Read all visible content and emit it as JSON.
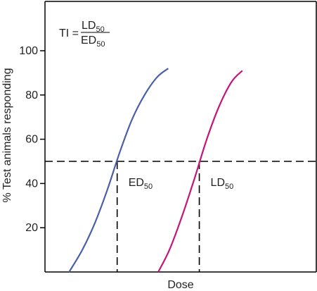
{
  "chart_data": {
    "type": "line",
    "xlabel": "Dose",
    "ylabel": "% Test animals responding",
    "ylim": [
      0,
      110
    ],
    "yticks": [
      20,
      40,
      60,
      80,
      100
    ],
    "x_ticks_shown": false,
    "grid": false,
    "formula": {
      "lhs": "TI =",
      "numerator": {
        "base": "LD",
        "sub": "50"
      },
      "denominator": {
        "base": "ED",
        "sub": "50"
      }
    },
    "reference_line": {
      "y": 50,
      "style": "dashed"
    },
    "series": [
      {
        "color": "#4a5fa8",
        "points": [
          [
            0.97,
            0
          ],
          [
            1.5,
            10
          ],
          [
            2.0,
            22
          ],
          [
            2.5,
            37
          ],
          [
            3.0,
            54
          ],
          [
            3.5,
            69
          ],
          [
            4.0,
            80
          ],
          [
            4.5,
            88
          ],
          [
            4.95,
            92
          ]
        ],
        "ref_x": 2.9,
        "ref_label": {
          "base": "ED",
          "sub": "50"
        }
      },
      {
        "color": "#c2177a",
        "points": [
          [
            4.55,
            0
          ],
          [
            5.0,
            10
          ],
          [
            5.5,
            25
          ],
          [
            6.0,
            42
          ],
          [
            6.5,
            60
          ],
          [
            7.0,
            75
          ],
          [
            7.5,
            86
          ],
          [
            7.93,
            91
          ]
        ],
        "ref_x": 6.2,
        "ref_label": {
          "base": "LD",
          "sub": "50"
        }
      }
    ],
    "xlim": [
      0,
      10.9
    ]
  }
}
